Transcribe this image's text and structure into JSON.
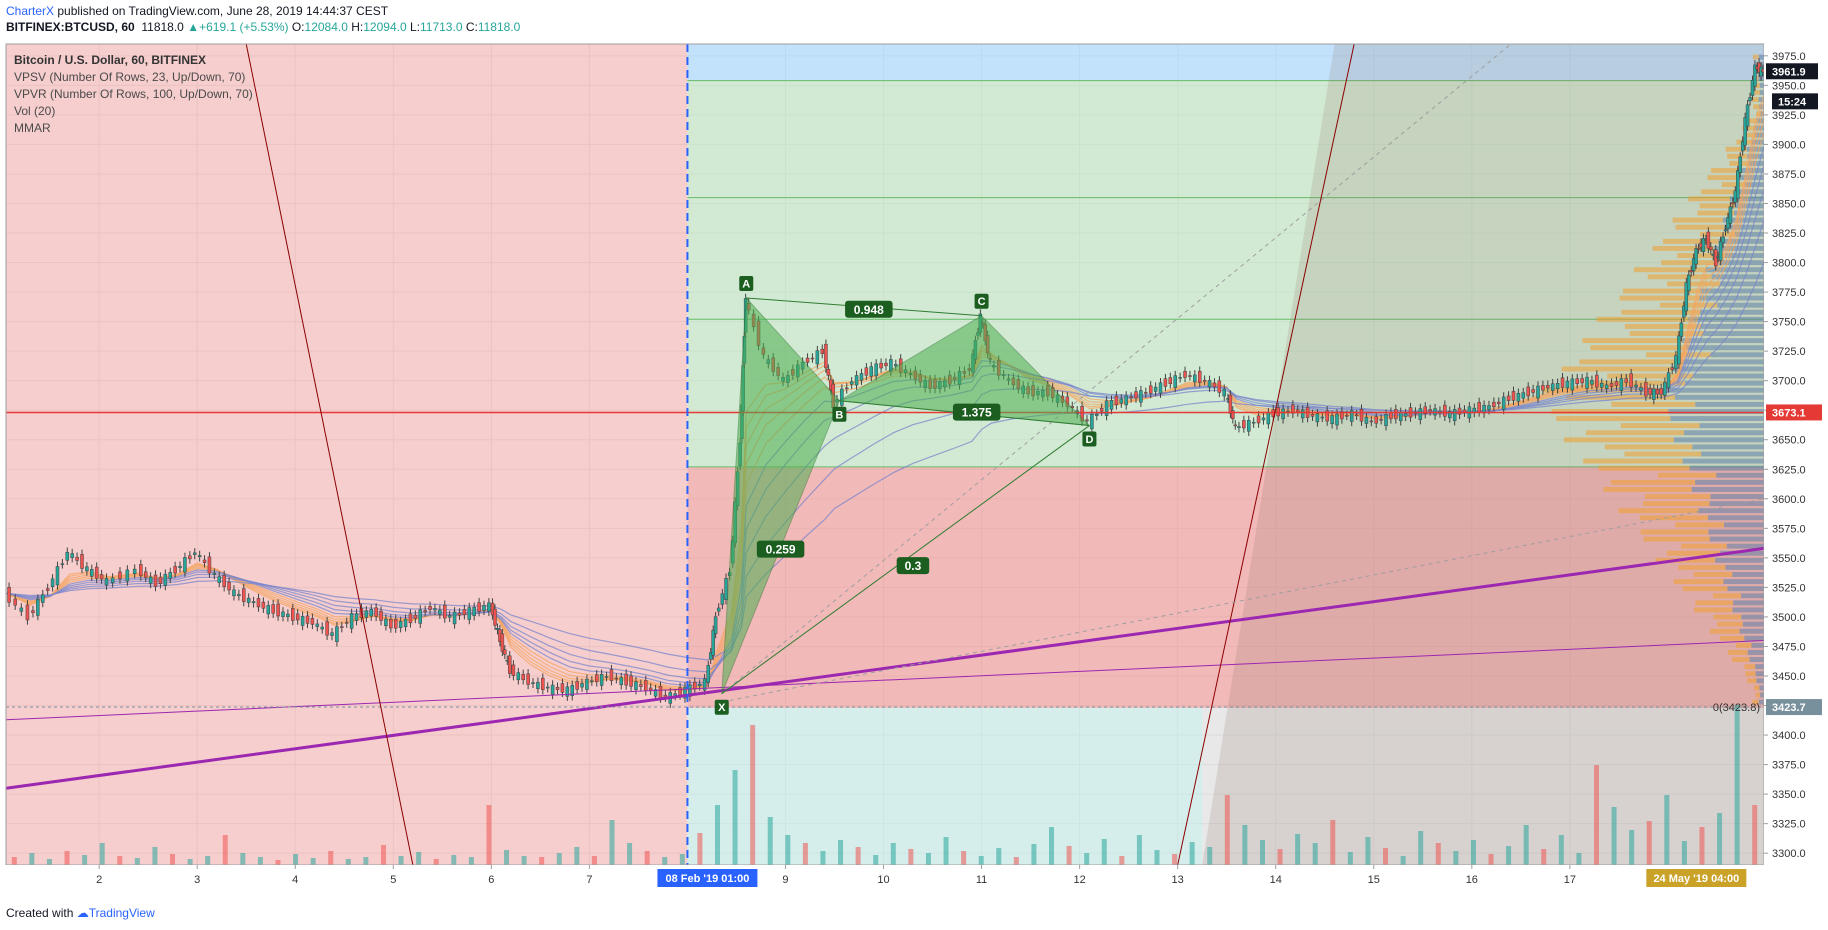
{
  "header": {
    "author": "CharterX",
    "published": "published on TradingView.com, June 28, 2019 14:44:37 CEST",
    "symbol": "BITFINEX:BTCUSD, 60",
    "last": "11818.0",
    "change": "+619.1 (+5.53%)",
    "o_label": "O:",
    "o_value": "12084.0",
    "h_label": "H:",
    "h_value": "12094.0",
    "l_label": "L:",
    "l_value": "11713.0",
    "c_label": "C:",
    "c_value": "11818.0"
  },
  "footer": {
    "created_with": "Created with",
    "brand": "TradingView"
  },
  "legend": [
    "Bitcoin / U.S. Dollar, 60, BITFINEX",
    "VPSV (Number Of Rows, 23, Up/Down, 70)",
    "VPVR (Number Of Rows, 100, Up/Down, 70)",
    "Vol (20)",
    "MMAR"
  ],
  "colors": {
    "up": "#26a69a",
    "down": "#ef5350",
    "trendline": "#9c27b0",
    "hline": "#e53935",
    "pattern_fill": "#4caf50",
    "pattern_stroke": "#2e7d32",
    "red_zone": "#e57373",
    "green_zone": "#a5d6a7",
    "blue_zone": "#90caf9",
    "grey_zone": "#bdbdbd",
    "cyan_zone": "#b2dfdb",
    "date_marker": "#2962ff",
    "last_marker": "#c9a227"
  },
  "chart_data": {
    "type": "candlestick",
    "symbol": "BITFINEX:BTCUSD",
    "timeframe": "60",
    "y_axis": {
      "ylim": [
        3290,
        3985
      ],
      "ticks": [
        3300,
        3325,
        3350,
        3375,
        3400,
        3425,
        3450,
        3475,
        3500,
        3525,
        3550,
        3575,
        3600,
        3625,
        3650,
        3675,
        3700,
        3725,
        3750,
        3775,
        3800,
        3825,
        3850,
        3875,
        3900,
        3925,
        3950,
        3975
      ],
      "tick_labels": [
        "3300.0",
        "3325.0",
        "3350.0",
        "3375.0",
        "3400.0",
        "3425.0",
        "3450.0",
        "3475.0",
        "3500.0",
        "3525.0",
        "3550.0",
        "3575.0",
        "3600.0",
        "3625.0",
        "3650.0",
        "3675.0",
        "3700.0",
        "3725.0",
        "3750.0",
        "3775.0",
        "3800.0",
        "3825.0",
        "3850.0",
        "3875.0",
        "3900.0",
        "3925.0",
        "3950.0",
        "3975.0"
      ]
    },
    "x_axis": {
      "xlim": [
        1.05,
        18.98
      ],
      "ticks": [
        2,
        3,
        4,
        5,
        6,
        7,
        9,
        10,
        11,
        12,
        13,
        14,
        15,
        16,
        17
      ],
      "tick_labels": [
        "2",
        "3",
        "4",
        "5",
        "6",
        "7",
        "9",
        "10",
        "11",
        "12",
        "13",
        "14",
        "15",
        "16",
        "17"
      ],
      "markers": [
        {
          "x": 8.0,
          "label": "08 Feb '19   01:00"
        },
        {
          "x": 18.8,
          "label": "24 May '19   04:00"
        }
      ]
    },
    "candles_close_path": [
      [
        1.05,
        3520
      ],
      [
        1.3,
        3500
      ],
      [
        1.5,
        3525
      ],
      [
        1.7,
        3555
      ],
      [
        1.9,
        3540
      ],
      [
        2.1,
        3530
      ],
      [
        2.4,
        3540
      ],
      [
        2.6,
        3528
      ],
      [
        2.8,
        3540
      ],
      [
        3.0,
        3555
      ],
      [
        3.2,
        3535
      ],
      [
        3.4,
        3520
      ],
      [
        3.6,
        3512
      ],
      [
        3.8,
        3505
      ],
      [
        4.0,
        3500
      ],
      [
        4.2,
        3495
      ],
      [
        4.4,
        3485
      ],
      [
        4.6,
        3500
      ],
      [
        4.8,
        3505
      ],
      [
        5.0,
        3492
      ],
      [
        5.2,
        3498
      ],
      [
        5.4,
        3508
      ],
      [
        5.6,
        3500
      ],
      [
        5.8,
        3505
      ],
      [
        6.0,
        3510
      ],
      [
        6.1,
        3480
      ],
      [
        6.2,
        3455
      ],
      [
        6.4,
        3445
      ],
      [
        6.6,
        3440
      ],
      [
        6.8,
        3438
      ],
      [
        7.0,
        3445
      ],
      [
        7.2,
        3450
      ],
      [
        7.4,
        3445
      ],
      [
        7.6,
        3440
      ],
      [
        7.8,
        3432
      ],
      [
        8.0,
        3438
      ],
      [
        8.2,
        3445
      ],
      [
        8.3,
        3500
      ],
      [
        8.45,
        3540
      ],
      [
        8.55,
        3650
      ],
      [
        8.6,
        3770
      ],
      [
        8.8,
        3720
      ],
      [
        9.0,
        3700
      ],
      [
        9.2,
        3715
      ],
      [
        9.4,
        3725
      ],
      [
        9.5,
        3680
      ],
      [
        9.7,
        3700
      ],
      [
        9.9,
        3710
      ],
      [
        10.1,
        3715
      ],
      [
        10.3,
        3705
      ],
      [
        10.5,
        3695
      ],
      [
        10.7,
        3700
      ],
      [
        10.9,
        3710
      ],
      [
        11.0,
        3755
      ],
      [
        11.1,
        3715
      ],
      [
        11.3,
        3700
      ],
      [
        11.5,
        3690
      ],
      [
        11.7,
        3690
      ],
      [
        11.9,
        3680
      ],
      [
        12.1,
        3665
      ],
      [
        12.3,
        3680
      ],
      [
        12.5,
        3685
      ],
      [
        12.7,
        3690
      ],
      [
        12.9,
        3698
      ],
      [
        13.1,
        3705
      ],
      [
        13.3,
        3700
      ],
      [
        13.5,
        3690
      ],
      [
        13.6,
        3660
      ],
      [
        13.8,
        3665
      ],
      [
        14.0,
        3672
      ],
      [
        14.2,
        3675
      ],
      [
        14.4,
        3670
      ],
      [
        14.6,
        3668
      ],
      [
        14.8,
        3672
      ],
      [
        15.0,
        3665
      ],
      [
        15.2,
        3670
      ],
      [
        15.4,
        3672
      ],
      [
        15.6,
        3675
      ],
      [
        15.8,
        3672
      ],
      [
        16.0,
        3675
      ],
      [
        16.2,
        3678
      ],
      [
        16.4,
        3685
      ],
      [
        16.6,
        3690
      ],
      [
        16.8,
        3695
      ],
      [
        17.0,
        3698
      ],
      [
        17.2,
        3700
      ],
      [
        17.4,
        3695
      ],
      [
        17.6,
        3700
      ],
      [
        17.8,
        3690
      ],
      [
        17.95,
        3690
      ],
      [
        18.1,
        3720
      ],
      [
        18.2,
        3780
      ],
      [
        18.3,
        3810
      ],
      [
        18.4,
        3820
      ],
      [
        18.5,
        3800
      ],
      [
        18.6,
        3830
      ],
      [
        18.7,
        3860
      ],
      [
        18.8,
        3920
      ],
      [
        18.9,
        3965
      ],
      [
        18.98,
        3961.9
      ]
    ],
    "harmonic_pattern": {
      "points": {
        "X": [
          8.35,
          3435
        ],
        "A": [
          8.6,
          3770
        ],
        "B": [
          9.55,
          3683
        ],
        "C": [
          11.0,
          3755
        ],
        "D": [
          12.1,
          3662
        ]
      },
      "ratios": [
        {
          "label": "0.948",
          "x": 9.85,
          "y": 3760
        },
        {
          "label": "1.375",
          "x": 10.95,
          "y": 3673
        },
        {
          "label": "0.259",
          "x": 8.95,
          "y": 3557
        },
        {
          "label": "0.3",
          "x": 10.3,
          "y": 3543
        }
      ]
    },
    "horizontal_levels": [
      {
        "y": 3673.1,
        "label": "3673.1",
        "color": "#e53935"
      },
      {
        "y": 3423.7,
        "label": "3423.7",
        "color": "#78909c"
      }
    ],
    "zone_levels": [
      3954,
      3855,
      3752,
      3627,
      3423
    ],
    "price_labels": [
      {
        "y": 3961.9,
        "label": "3961.9",
        "bg": "#131722"
      },
      {
        "y": 3950,
        "label": "15:24",
        "bg": "#131722"
      }
    ],
    "vpsv_note": "0(3423.8)",
    "volume_heights": [
      8,
      12,
      6,
      14,
      10,
      22,
      9,
      7,
      18,
      11,
      6,
      9,
      30,
      12,
      8,
      5,
      11,
      7,
      14,
      6,
      8,
      20,
      9,
      13,
      6,
      10,
      8,
      60,
      15,
      9,
      8,
      12,
      18,
      9,
      45,
      22,
      14,
      8,
      11,
      32,
      60,
      95,
      140,
      48,
      30,
      22,
      14,
      25,
      18,
      10,
      22,
      16,
      12,
      28,
      14,
      9,
      17,
      8,
      21,
      38,
      19,
      12,
      26,
      9,
      30,
      15,
      11,
      23,
      18,
      70,
      40,
      25,
      16,
      31,
      22,
      45,
      13,
      28,
      17,
      9,
      34,
      22,
      14,
      25,
      11,
      19,
      40,
      16,
      30,
      12,
      100,
      58,
      35,
      44,
      70,
      24,
      38,
      52,
      160,
      60
    ]
  }
}
